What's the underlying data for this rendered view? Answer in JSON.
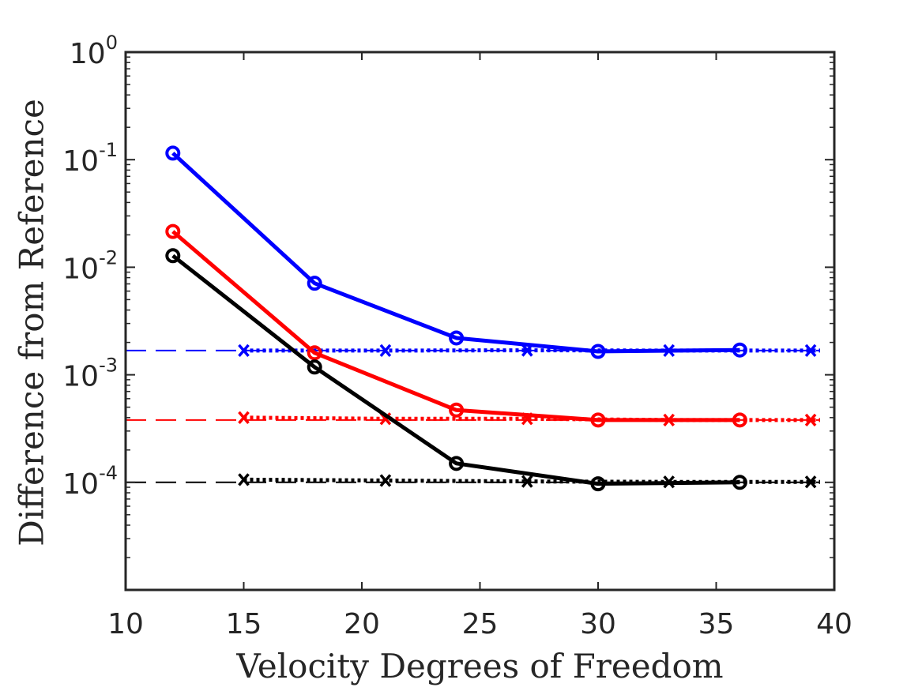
{
  "chart_data": {
    "type": "line",
    "title": "",
    "xlabel": "Velocity Degrees of Freedom",
    "ylabel": "Difference from Reference",
    "xlim": [
      10,
      40
    ],
    "ylim": [
      1e-05,
      1
    ],
    "yscale": "log",
    "grid": false,
    "x_ticks": [
      10,
      15,
      20,
      25,
      30,
      35,
      40
    ],
    "y_ticks": [
      {
        "value": 1,
        "base": "10",
        "exp": "0"
      },
      {
        "value": 0.1,
        "base": "10",
        "exp": "-1"
      },
      {
        "value": 0.01,
        "base": "10",
        "exp": "-2"
      },
      {
        "value": 0.001,
        "base": "10",
        "exp": "-3"
      },
      {
        "value": 0.0001,
        "base": "10",
        "exp": "-4"
      }
    ],
    "series": [
      {
        "name": "blue-solid",
        "color": "#0000ff",
        "style": "solid",
        "marker": "circle",
        "x": [
          12,
          18,
          24,
          30,
          36
        ],
        "values": [
          0.115,
          0.0071,
          0.0022,
          0.00165,
          0.0017
        ]
      },
      {
        "name": "red-solid",
        "color": "#ff0000",
        "style": "solid",
        "marker": "circle",
        "x": [
          12,
          18,
          24,
          30,
          36
        ],
        "values": [
          0.0215,
          0.0016,
          0.00047,
          0.00038,
          0.00038
        ]
      },
      {
        "name": "black-solid",
        "color": "#000000",
        "style": "solid",
        "marker": "circle",
        "x": [
          12,
          18,
          24,
          30,
          36
        ],
        "values": [
          0.0128,
          0.00118,
          0.00015,
          9.7e-05,
          0.0001
        ]
      },
      {
        "name": "blue-dotted",
        "color": "#0000ff",
        "style": "dotted",
        "marker": "x",
        "x": [
          15,
          21,
          27,
          33,
          39
        ],
        "values": [
          0.00168,
          0.00168,
          0.00169,
          0.00168,
          0.00168
        ]
      },
      {
        "name": "red-dotted",
        "color": "#ff0000",
        "style": "dotted",
        "marker": "x",
        "x": [
          15,
          21,
          27,
          33,
          39
        ],
        "values": [
          0.0004,
          0.00039,
          0.00039,
          0.00038,
          0.00038
        ]
      },
      {
        "name": "black-dotted",
        "color": "#000000",
        "style": "dotted",
        "marker": "x",
        "x": [
          15,
          21,
          27,
          33,
          39
        ],
        "values": [
          0.000106,
          0.000104,
          0.000102,
          0.000101,
          0.000101
        ]
      }
    ],
    "reference_lines": [
      {
        "name": "blue-reference",
        "color": "#0000ff",
        "style": "dashed",
        "value": 0.00168
      },
      {
        "name": "red-reference",
        "color": "#ff0000",
        "style": "dashed",
        "value": 0.00038
      },
      {
        "name": "black-reference",
        "color": "#000000",
        "style": "dashed",
        "value": 0.0001
      }
    ]
  }
}
